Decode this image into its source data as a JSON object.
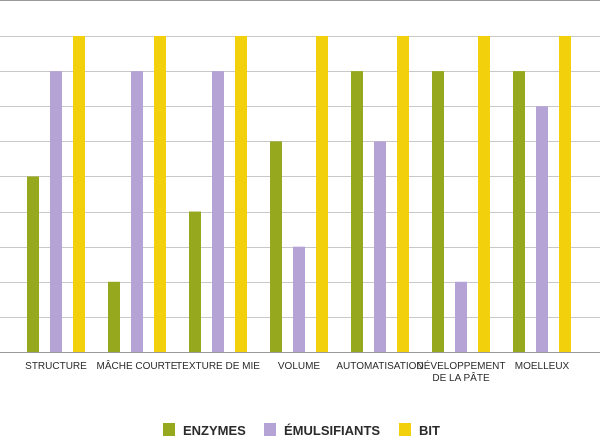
{
  "chart_data": {
    "type": "bar",
    "categories": [
      [
        "STRUCTURE"
      ],
      [
        "MÂCHE COURTE"
      ],
      [
        "TEXTURE DE MIE"
      ],
      [
        "VOLUME"
      ],
      [
        "AUTOMATISATION"
      ],
      [
        "DÉVELOPPEMENT",
        "DE LA PÂTE"
      ],
      [
        "MOELLEUX"
      ]
    ],
    "series": [
      {
        "name": "ENZYMES",
        "color": "#96a81e",
        "values": [
          5,
          2,
          4,
          6,
          8,
          8,
          8
        ]
      },
      {
        "name": "ÉMULSIFIANTS",
        "color": "#b5a3d6",
        "values": [
          8,
          8,
          8,
          3,
          6,
          2,
          7
        ]
      },
      {
        "name": "BIT",
        "color": "#f2d10c",
        "values": [
          9,
          9,
          9,
          9,
          9,
          9,
          9
        ]
      }
    ],
    "ylim": [
      0,
      9
    ],
    "grid": true,
    "legend": "bottom-center"
  }
}
